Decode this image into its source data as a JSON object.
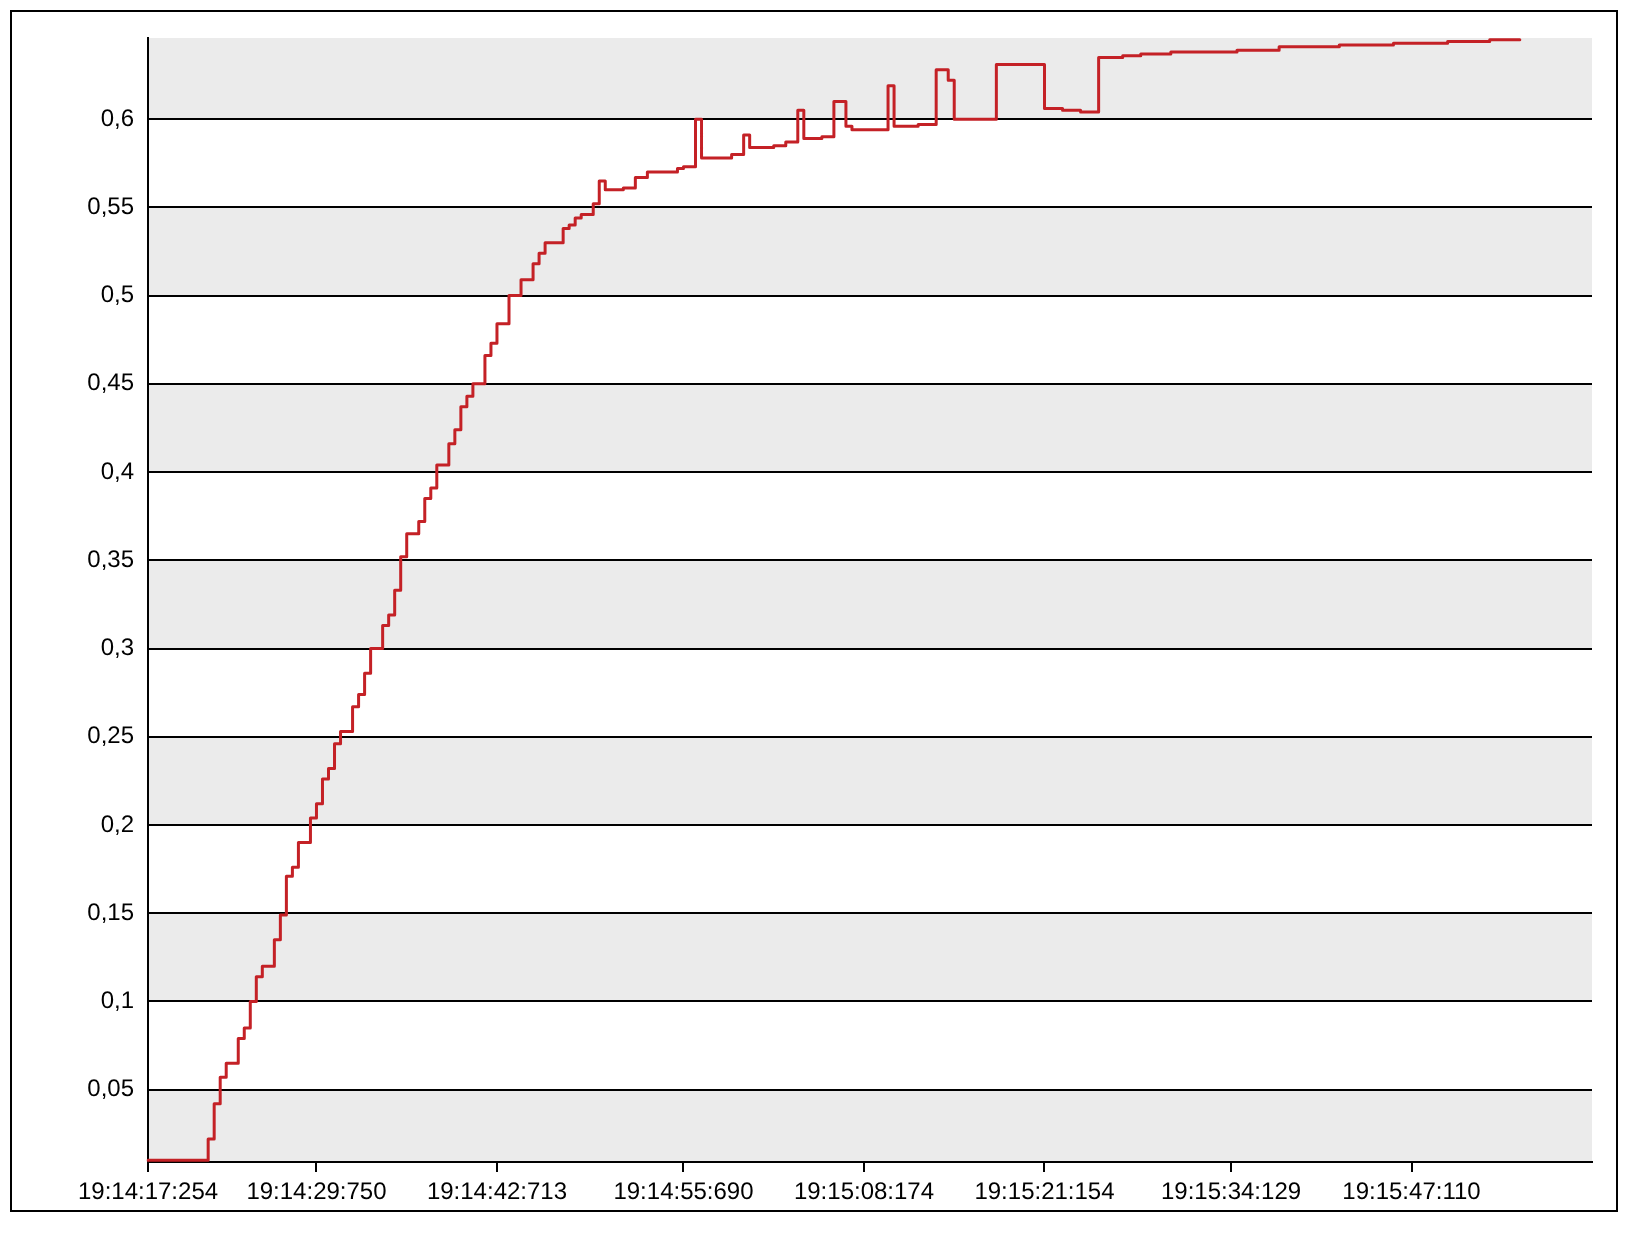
{
  "chart_data": {
    "type": "step",
    "color": "#c42126",
    "categories": [
      "19:14:17:254",
      null,
      null,
      null,
      null,
      null,
      null,
      null,
      null,
      null,
      null,
      null,
      null,
      null,
      null,
      null,
      null,
      null,
      null,
      null,
      null,
      null,
      null,
      null,
      null,
      null,
      null,
      null,
      "19:14:29:750",
      null,
      null,
      null,
      null,
      null,
      null,
      null,
      null,
      null,
      null,
      null,
      null,
      null,
      null,
      null,
      null,
      null,
      null,
      null,
      null,
      null,
      null,
      null,
      null,
      null,
      null,
      null,
      null,
      null,
      "19:14:42:713",
      null,
      null,
      null,
      null,
      null,
      null,
      null,
      null,
      null,
      null,
      null,
      null,
      null,
      null,
      null,
      null,
      null,
      null,
      null,
      null,
      null,
      null,
      null,
      null,
      null,
      null,
      null,
      null,
      null,
      null,
      "19:14:55:690",
      null,
      null,
      null,
      null,
      null,
      null,
      null,
      null,
      null,
      null,
      null,
      null,
      null,
      null,
      null,
      null,
      null,
      null,
      null,
      null,
      null,
      null,
      null,
      null,
      null,
      null,
      null,
      null,
      null,
      "19:15:08:174",
      null,
      null,
      null,
      null,
      null,
      null,
      null,
      null,
      null,
      null,
      null,
      null,
      null,
      null,
      null,
      null,
      null,
      null,
      null,
      null,
      null,
      null,
      null,
      null,
      null,
      null,
      null,
      null,
      null,
      "19:15:21:154",
      null,
      null,
      null,
      null,
      null,
      null,
      null,
      null,
      null,
      null,
      null,
      null,
      null,
      null,
      null,
      null,
      null,
      null,
      null,
      null,
      null,
      null,
      null,
      null,
      null,
      null,
      null,
      null,
      null,
      null,
      "19:15:34:129",
      null,
      null,
      null,
      null,
      null,
      null,
      null,
      null,
      null,
      null,
      null,
      null,
      null,
      null,
      null,
      null,
      null,
      null,
      null,
      null,
      null,
      null,
      null,
      null,
      null,
      null,
      null,
      null,
      null,
      "19:15:47:110",
      null,
      null,
      null,
      null,
      null,
      null,
      null,
      null,
      null,
      null,
      null,
      null,
      null,
      null,
      null,
      null,
      null,
      null,
      null,
      null,
      null,
      null,
      null,
      null,
      null,
      null,
      null,
      null,
      null,
      null
    ],
    "values": [
      0.01,
      0.01,
      0.01,
      0.01,
      0.01,
      0.01,
      0.01,
      0.01,
      0.01,
      0.01,
      0.022,
      0.042,
      0.057,
      0.065,
      0.065,
      0.079,
      0.085,
      0.1,
      0.114,
      0.12,
      0.12,
      0.135,
      0.149,
      0.171,
      0.176,
      0.19,
      0.19,
      0.204,
      0.212,
      0.226,
      0.232,
      0.246,
      0.253,
      0.253,
      0.267,
      0.274,
      0.286,
      0.3,
      0.3,
      0.313,
      0.319,
      0.333,
      0.352,
      0.365,
      0.365,
      0.372,
      0.385,
      0.391,
      0.404,
      0.404,
      0.416,
      0.424,
      0.437,
      0.443,
      0.45,
      0.45,
      0.466,
      0.473,
      0.484,
      0.484,
      0.5,
      0.5,
      0.509,
      0.509,
      0.518,
      0.524,
      0.53,
      0.53,
      0.53,
      0.538,
      0.54,
      0.544,
      0.546,
      0.546,
      0.552,
      0.565,
      0.56,
      0.56,
      0.56,
      0.561,
      0.561,
      0.567,
      0.567,
      0.57,
      0.57,
      0.57,
      0.57,
      0.57,
      0.572,
      0.573,
      0.573,
      0.6,
      0.578,
      0.578,
      0.578,
      0.578,
      0.578,
      0.58,
      0.58,
      0.591,
      0.584,
      0.584,
      0.584,
      0.584,
      0.585,
      0.585,
      0.587,
      0.587,
      0.605,
      0.589,
      0.589,
      0.589,
      0.59,
      0.59,
      0.61,
      0.61,
      0.596,
      0.594,
      0.594,
      0.594,
      0.594,
      0.594,
      0.594,
      0.619,
      0.596,
      0.596,
      0.596,
      0.596,
      0.597,
      0.597,
      0.597,
      0.628,
      0.628,
      0.622,
      0.6,
      0.6,
      0.6,
      0.6,
      0.6,
      0.6,
      0.6,
      0.631,
      0.631,
      0.631,
      0.631,
      0.631,
      0.631,
      0.631,
      0.631,
      0.606,
      0.606,
      0.606,
      0.605,
      0.605,
      0.605,
      0.604,
      0.604,
      0.604,
      0.635,
      0.635,
      0.635,
      0.635,
      0.636,
      0.636,
      0.636,
      0.637,
      0.637,
      0.637,
      0.637,
      0.637,
      0.638,
      0.638,
      0.638,
      0.638,
      0.638,
      0.638,
      0.638,
      0.638,
      0.638,
      0.638,
      0.638,
      0.639,
      0.639,
      0.639,
      0.639,
      0.639,
      0.639,
      0.639,
      0.641,
      0.641,
      0.641,
      0.641,
      0.641,
      0.641,
      0.641,
      0.641,
      0.641,
      0.641,
      0.642,
      0.642,
      0.642,
      0.642,
      0.642,
      0.642,
      0.642,
      0.642,
      0.642,
      0.643,
      0.643,
      0.643,
      0.643,
      0.643,
      0.643,
      0.643,
      0.643,
      0.643,
      0.644,
      0.644,
      0.644,
      0.644,
      0.644,
      0.644,
      0.644,
      0.645,
      0.645,
      0.645,
      0.645,
      0.645,
      0.645,
      null,
      null,
      null,
      null,
      null,
      null,
      null,
      null,
      null,
      null,
      null,
      null
    ],
    "ylim": [
      0.009,
      0.646
    ],
    "yticks": [
      {
        "value": 0.05,
        "label": "0,05"
      },
      {
        "value": 0.1,
        "label": "0,1"
      },
      {
        "value": 0.15,
        "label": "0,15"
      },
      {
        "value": 0.2,
        "label": "0,2"
      },
      {
        "value": 0.25,
        "label": "0,25"
      },
      {
        "value": 0.3,
        "label": "0,3"
      },
      {
        "value": 0.35,
        "label": "0,35"
      },
      {
        "value": 0.4,
        "label": "0,4"
      },
      {
        "value": 0.45,
        "label": "0,45"
      },
      {
        "value": 0.5,
        "label": "0,5"
      },
      {
        "value": 0.55,
        "label": "0,55"
      },
      {
        "value": 0.6,
        "label": "0,6"
      }
    ],
    "grid": "y",
    "bands": [
      {
        "axis": "y",
        "from": 0.009,
        "to": 0.05,
        "color": "#ebebeb"
      },
      {
        "axis": "y",
        "from": 0.1,
        "to": 0.15,
        "color": "#ebebeb"
      },
      {
        "axis": "y",
        "from": 0.2,
        "to": 0.25,
        "color": "#ebebeb"
      },
      {
        "axis": "y",
        "from": 0.3,
        "to": 0.35,
        "color": "#ebebeb"
      },
      {
        "axis": "y",
        "from": 0.4,
        "to": 0.45,
        "color": "#ebebeb"
      },
      {
        "axis": "y",
        "from": 0.5,
        "to": 0.55,
        "color": "#ebebeb"
      },
      {
        "axis": "y",
        "from": 0.6,
        "to": 0.646,
        "color": "#ebebeb"
      }
    ]
  }
}
